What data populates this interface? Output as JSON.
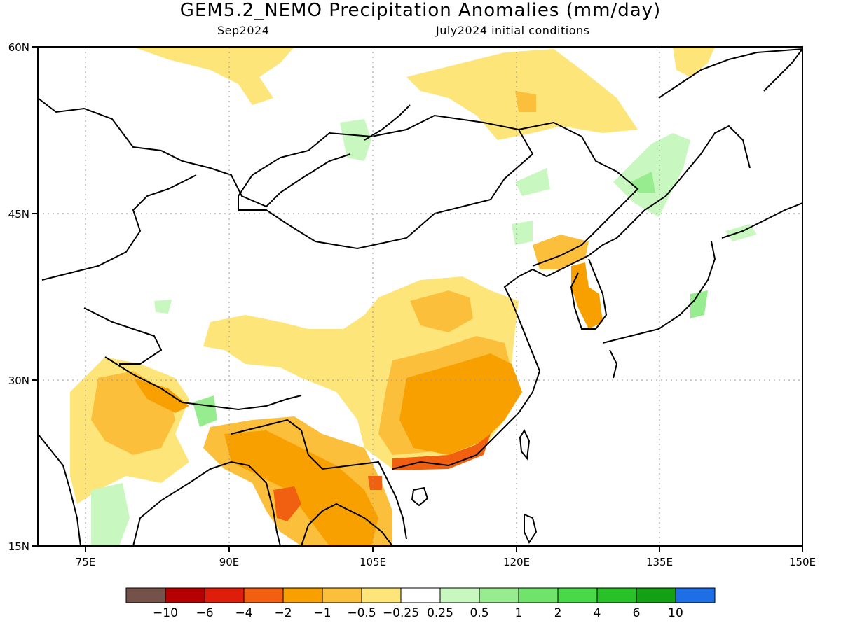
{
  "header": {
    "title": "GEM5.2_NEMO Precipitation Anomalies (mm/day)",
    "month": "Sep2024",
    "init": "July2024 initial conditions"
  },
  "axes": {
    "lat_labels": [
      "60N",
      "45N",
      "30N",
      "15N"
    ],
    "lon_labels": [
      "75E",
      "90E",
      "105E",
      "120E",
      "135E",
      "150E"
    ],
    "lat_range": [
      15,
      60
    ],
    "lon_range": [
      70,
      150
    ]
  },
  "colorbar": {
    "colors": [
      "#74524a",
      "#b40000",
      "#dc1e0a",
      "#f06010",
      "#f7a000",
      "#fbbf3c",
      "#fde57a",
      "#ffffff",
      "#c8f8c0",
      "#98ec90",
      "#6fe36a",
      "#48d848",
      "#28c228",
      "#14a014",
      "#1e6ee6"
    ],
    "labels": [
      "-10",
      "-6",
      "-4",
      "-2",
      "-1",
      "-0.5",
      "-0.25",
      "0.25",
      "0.5",
      "1",
      "2",
      "4",
      "6",
      "10"
    ]
  }
}
